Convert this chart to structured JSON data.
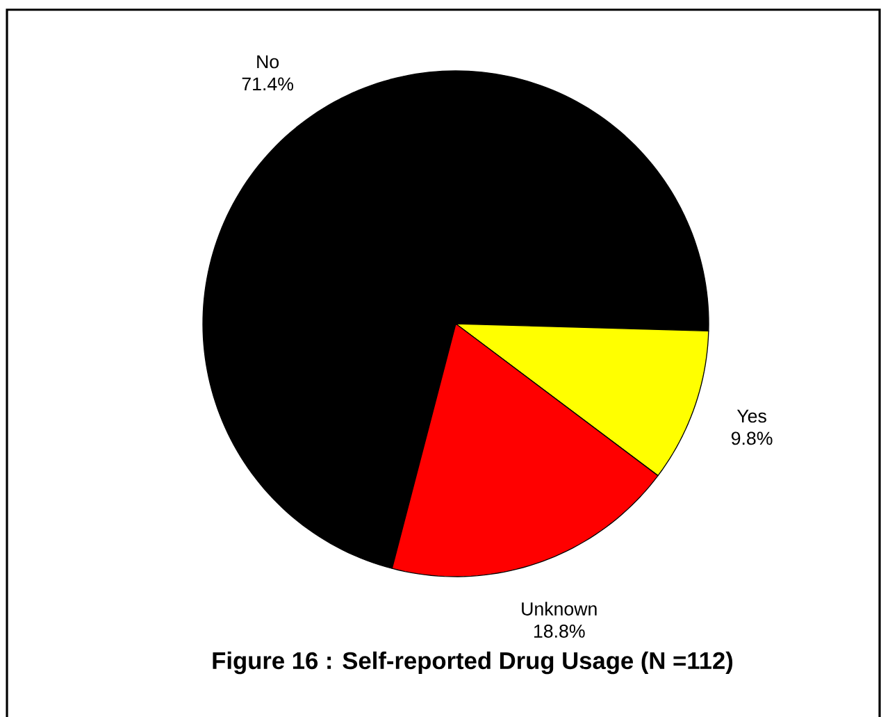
{
  "chart_data": {
    "type": "pie",
    "title": "Figure 16 : Self-reported Drug Usage (N =112)",
    "categories": [
      "No",
      "Yes",
      "Unknown"
    ],
    "values": [
      71.4,
      9.8,
      18.8
    ],
    "value_labels": [
      "71.4%",
      "9.8%",
      "18.8%"
    ],
    "colors": [
      "#000000",
      "#ffff00",
      "#ff0000"
    ]
  }
}
